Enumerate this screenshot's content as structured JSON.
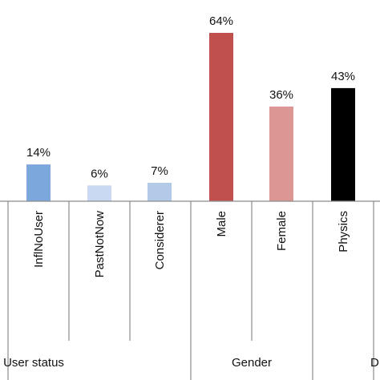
{
  "chart_data": {
    "type": "bar",
    "ylim": [
      0,
      70
    ],
    "grid": false,
    "legend": "none",
    "categories": [
      "InflNoUser",
      "PastNotNow",
      "Considerer",
      "Male",
      "Female",
      "Physics"
    ],
    "values": [
      14,
      6,
      7,
      64,
      36,
      43
    ],
    "value_labels": [
      "14%",
      "6%",
      "7%",
      "64%",
      "36%",
      "43%"
    ],
    "bar_colors": [
      "#7ba7dd",
      "#c9d9f1",
      "#b3c9e8",
      "#c0504d",
      "#dc9694",
      "#000000"
    ],
    "groups": [
      {
        "label": "User status",
        "categories": [
          "InflNoUser",
          "PastNotNow",
          "Considerer"
        ]
      },
      {
        "label": "Gender",
        "categories": [
          "Male",
          "Female"
        ]
      },
      {
        "label": "D",
        "categories": [
          "Physics"
        ]
      }
    ]
  }
}
